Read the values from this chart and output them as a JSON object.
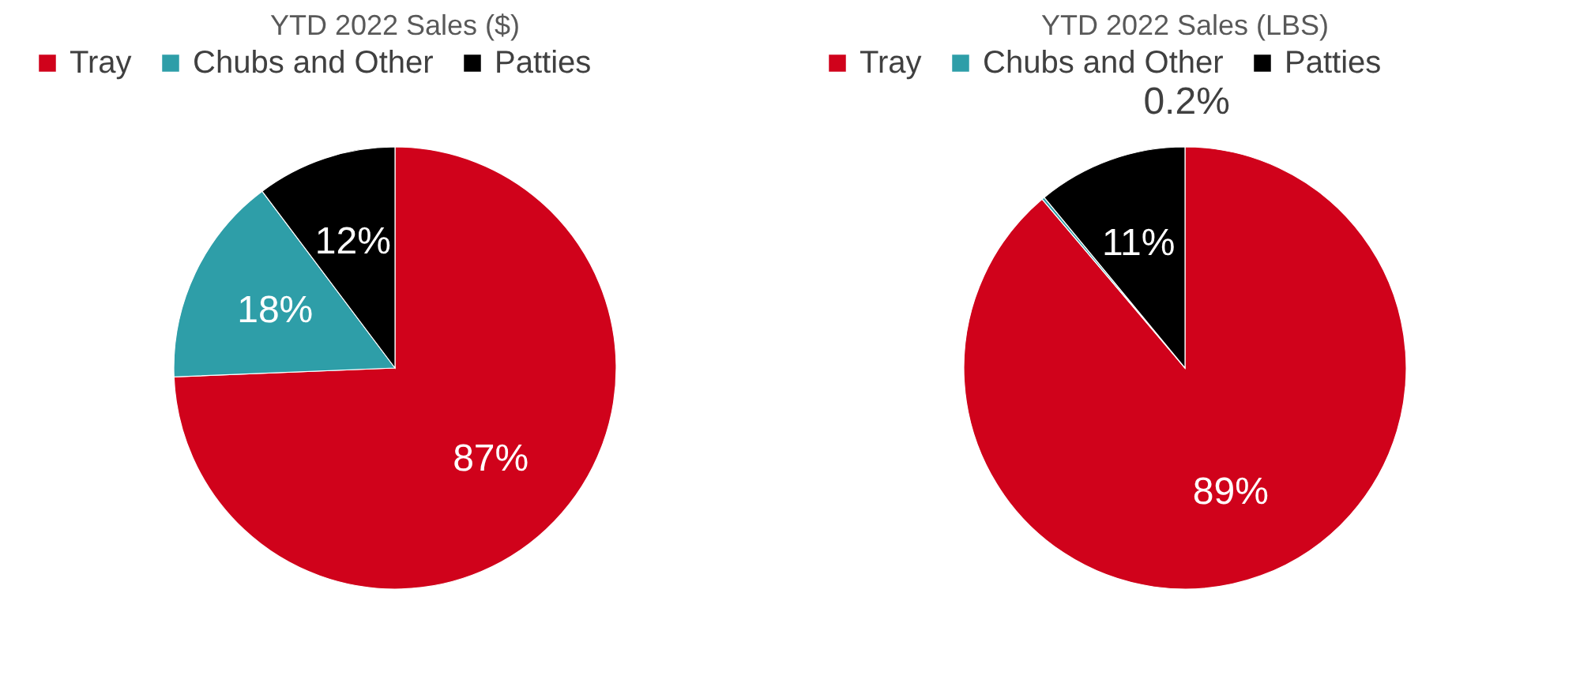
{
  "chart_data": [
    {
      "type": "pie",
      "title": "YTD 2022 Sales ($)",
      "categories": [
        "Tray",
        "Chubs and Other",
        "Patties"
      ],
      "values": [
        87,
        18,
        12
      ],
      "colors": [
        "#d0021b",
        "#2e9ea8",
        "#000000"
      ],
      "value_labels": [
        "87%",
        "18%",
        "12%"
      ],
      "legend": "top"
    },
    {
      "type": "pie",
      "title": "YTD 2022 Sales (LBS)",
      "categories": [
        "Tray",
        "Chubs and Other",
        "Patties"
      ],
      "values": [
        89,
        0.2,
        11
      ],
      "colors": [
        "#d0021b",
        "#2e9ea8",
        "#000000"
      ],
      "value_labels": [
        "89%",
        "0.2%",
        "11%"
      ],
      "legend": "top"
    }
  ]
}
